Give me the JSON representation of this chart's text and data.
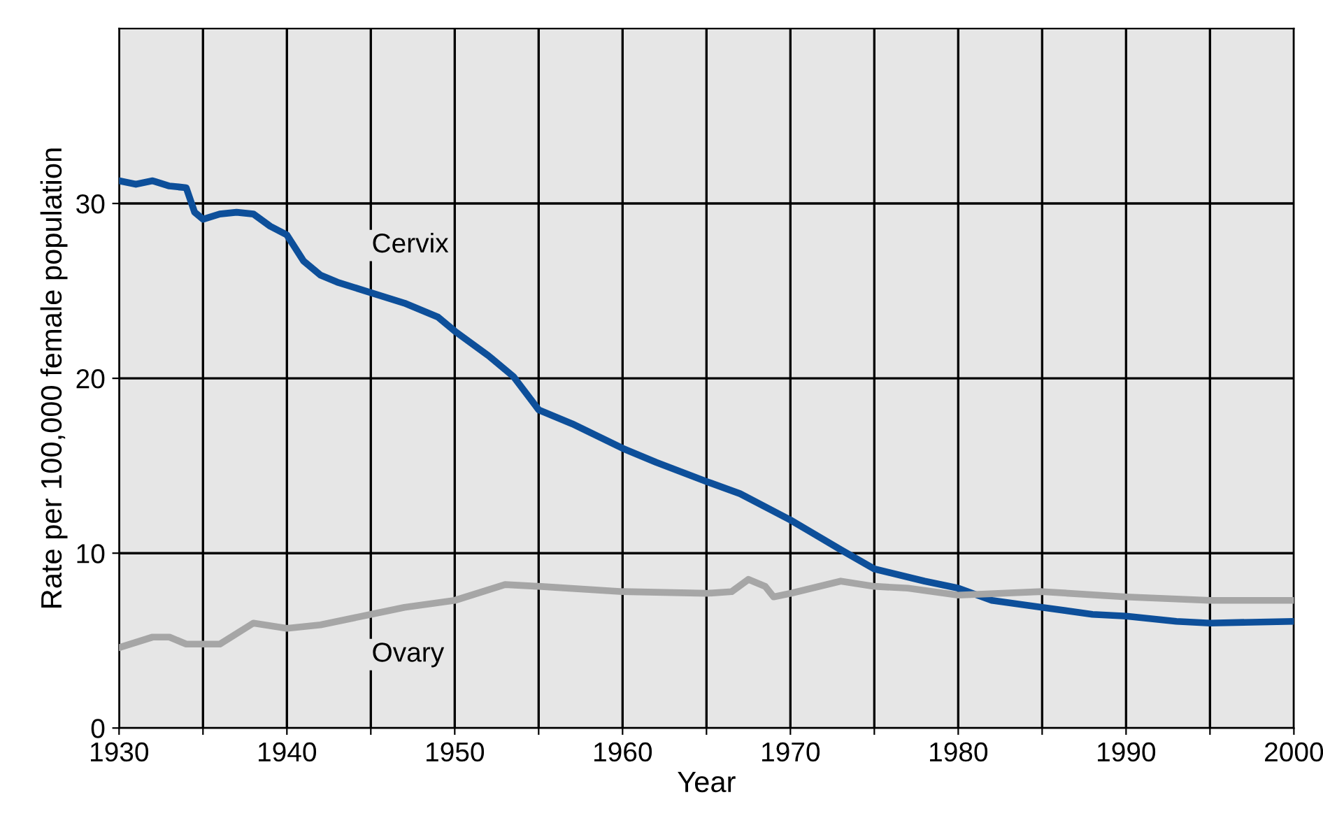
{
  "chart_data": {
    "type": "line",
    "xlabel": "Year",
    "ylabel": "Rate per 100,000 female population",
    "xlim": [
      1930,
      2000
    ],
    "ylim": [
      0,
      40
    ],
    "xticks": [
      1930,
      {
        "value": 1935,
        "label": null
      },
      1940,
      {
        "value": 1945,
        "label": null
      },
      1950,
      {
        "value": 1955,
        "label": null
      },
      1960,
      {
        "value": 1965,
        "label": null
      },
      1970,
      {
        "value": 1975,
        "label": null
      },
      1980,
      {
        "value": 1985,
        "label": null
      },
      1990,
      {
        "value": 1995,
        "label": null
      },
      2000
    ],
    "yticks": [
      0,
      10,
      20,
      30
    ],
    "grid": true,
    "marker": "none",
    "line_style": "solid",
    "series": [
      {
        "name": "Cervix",
        "color": "#0d4f9a",
        "x": [
          1930,
          1931,
          1932,
          1933,
          1934,
          1934.5,
          1935,
          1936,
          1937,
          1938,
          1939,
          1940,
          1941,
          1942,
          1943,
          1945,
          1947,
          1949,
          1950,
          1952,
          1953.5,
          1955,
          1957,
          1960,
          1962,
          1965,
          1967,
          1970,
          1973,
          1975,
          1978,
          1980,
          1982,
          1985,
          1988,
          1990,
          1993,
          1995,
          2000
        ],
        "values": [
          31.3,
          31.1,
          31.3,
          31.0,
          30.9,
          29.5,
          29.1,
          29.4,
          29.5,
          29.4,
          28.7,
          28.2,
          26.7,
          25.9,
          25.5,
          24.9,
          24.3,
          23.5,
          22.7,
          21.3,
          20.1,
          18.2,
          17.4,
          16.0,
          15.2,
          14.1,
          13.4,
          11.9,
          10.2,
          9.1,
          8.4,
          8.0,
          7.3,
          6.9,
          6.5,
          6.4,
          6.1,
          6.0,
          6.1
        ]
      },
      {
        "name": "Ovary",
        "color": "#a6a6a6",
        "x": [
          1930,
          1932,
          1933,
          1934,
          1936,
          1938,
          1940,
          1942,
          1945,
          1947,
          1950,
          1953,
          1955,
          1960,
          1965,
          1966.5,
          1967.5,
          1968.5,
          1969,
          1970,
          1973,
          1975,
          1977,
          1980,
          1985,
          1990,
          1995,
          2000
        ],
        "values": [
          4.6,
          5.2,
          5.2,
          4.8,
          4.8,
          6.0,
          5.7,
          5.9,
          6.5,
          6.9,
          7.3,
          8.2,
          8.1,
          7.8,
          7.7,
          7.8,
          8.5,
          8.1,
          7.5,
          7.7,
          8.4,
          8.1,
          8.0,
          7.6,
          7.8,
          7.5,
          7.3,
          7.3
        ]
      }
    ]
  }
}
